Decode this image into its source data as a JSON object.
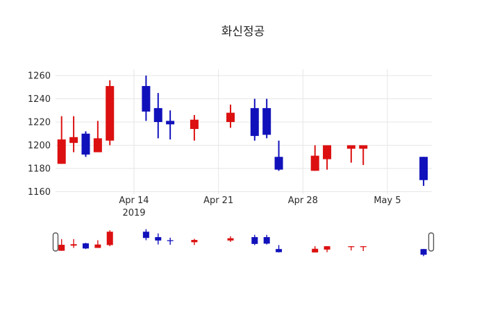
{
  "chart_data": {
    "type": "candlestick",
    "title": "화신정공",
    "xlabel": "",
    "ylabel": "",
    "ylim": [
      1155,
      1265
    ],
    "xlim": [
      "2019-04-07",
      "2019-05-09"
    ],
    "grid": true,
    "legend": "none",
    "rangeslider": true,
    "y_ticks": [
      1260,
      1240,
      1220,
      1200,
      1180,
      1160
    ],
    "x_ticks": [
      {
        "label": "Apr 14",
        "year": "2019",
        "date": "2019-04-14"
      },
      {
        "label": "Apr 21",
        "year": "",
        "date": "2019-04-21"
      },
      {
        "label": "Apr 28",
        "year": "",
        "date": "2019-04-28"
      },
      {
        "label": "May 5",
        "year": "",
        "date": "2019-05-05"
      }
    ],
    "colors": {
      "increasing": "#dc1010",
      "decreasing": "#1111bb",
      "grid": "#e6e6e6",
      "text": "#2a2a2a",
      "background": "#ffffff",
      "handle_fill": "#ffffff",
      "handle_border": "#555555"
    },
    "series": [
      {
        "date": "2019-04-08",
        "open": 1184,
        "high": 1225,
        "low": 1184,
        "close": 1205
      },
      {
        "date": "2019-04-09",
        "open": 1202,
        "high": 1225,
        "low": 1194,
        "close": 1207
      },
      {
        "date": "2019-04-10",
        "open": 1210,
        "high": 1212,
        "low": 1190,
        "close": 1192
      },
      {
        "date": "2019-04-11",
        "open": 1194,
        "high": 1221,
        "low": 1194,
        "close": 1206
      },
      {
        "date": "2019-04-12",
        "open": 1204,
        "high": 1256,
        "low": 1200,
        "close": 1251
      },
      {
        "date": "2019-04-15",
        "open": 1251,
        "high": 1260,
        "low": 1221,
        "close": 1229
      },
      {
        "date": "2019-04-16",
        "open": 1232,
        "high": 1245,
        "low": 1206,
        "close": 1220
      },
      {
        "date": "2019-04-17",
        "open": 1221,
        "high": 1230,
        "low": 1205,
        "close": 1218
      },
      {
        "date": "2019-04-19",
        "open": 1214,
        "high": 1226,
        "low": 1204,
        "close": 1222
      },
      {
        "date": "2019-04-22",
        "open": 1220,
        "high": 1235,
        "low": 1215,
        "close": 1228
      },
      {
        "date": "2019-04-24",
        "open": 1232,
        "high": 1240,
        "low": 1204,
        "close": 1208
      },
      {
        "date": "2019-04-25",
        "open": 1232,
        "high": 1240,
        "low": 1206,
        "close": 1209
      },
      {
        "date": "2019-04-26",
        "open": 1190,
        "high": 1204,
        "low": 1178,
        "close": 1179
      },
      {
        "date": "2019-04-29",
        "open": 1178,
        "high": 1200,
        "low": 1178,
        "close": 1191
      },
      {
        "date": "2019-04-30",
        "open": 1188,
        "high": 1200,
        "low": 1179,
        "close": 1200
      },
      {
        "date": "2019-05-02",
        "open": 1197,
        "high": 1200,
        "low": 1185,
        "close": 1200
      },
      {
        "date": "2019-05-03",
        "open": 1197,
        "high": 1200,
        "low": 1183,
        "close": 1200
      },
      {
        "date": "2019-05-08",
        "open": 1190,
        "high": 1190,
        "low": 1165,
        "close": 1170
      }
    ]
  }
}
